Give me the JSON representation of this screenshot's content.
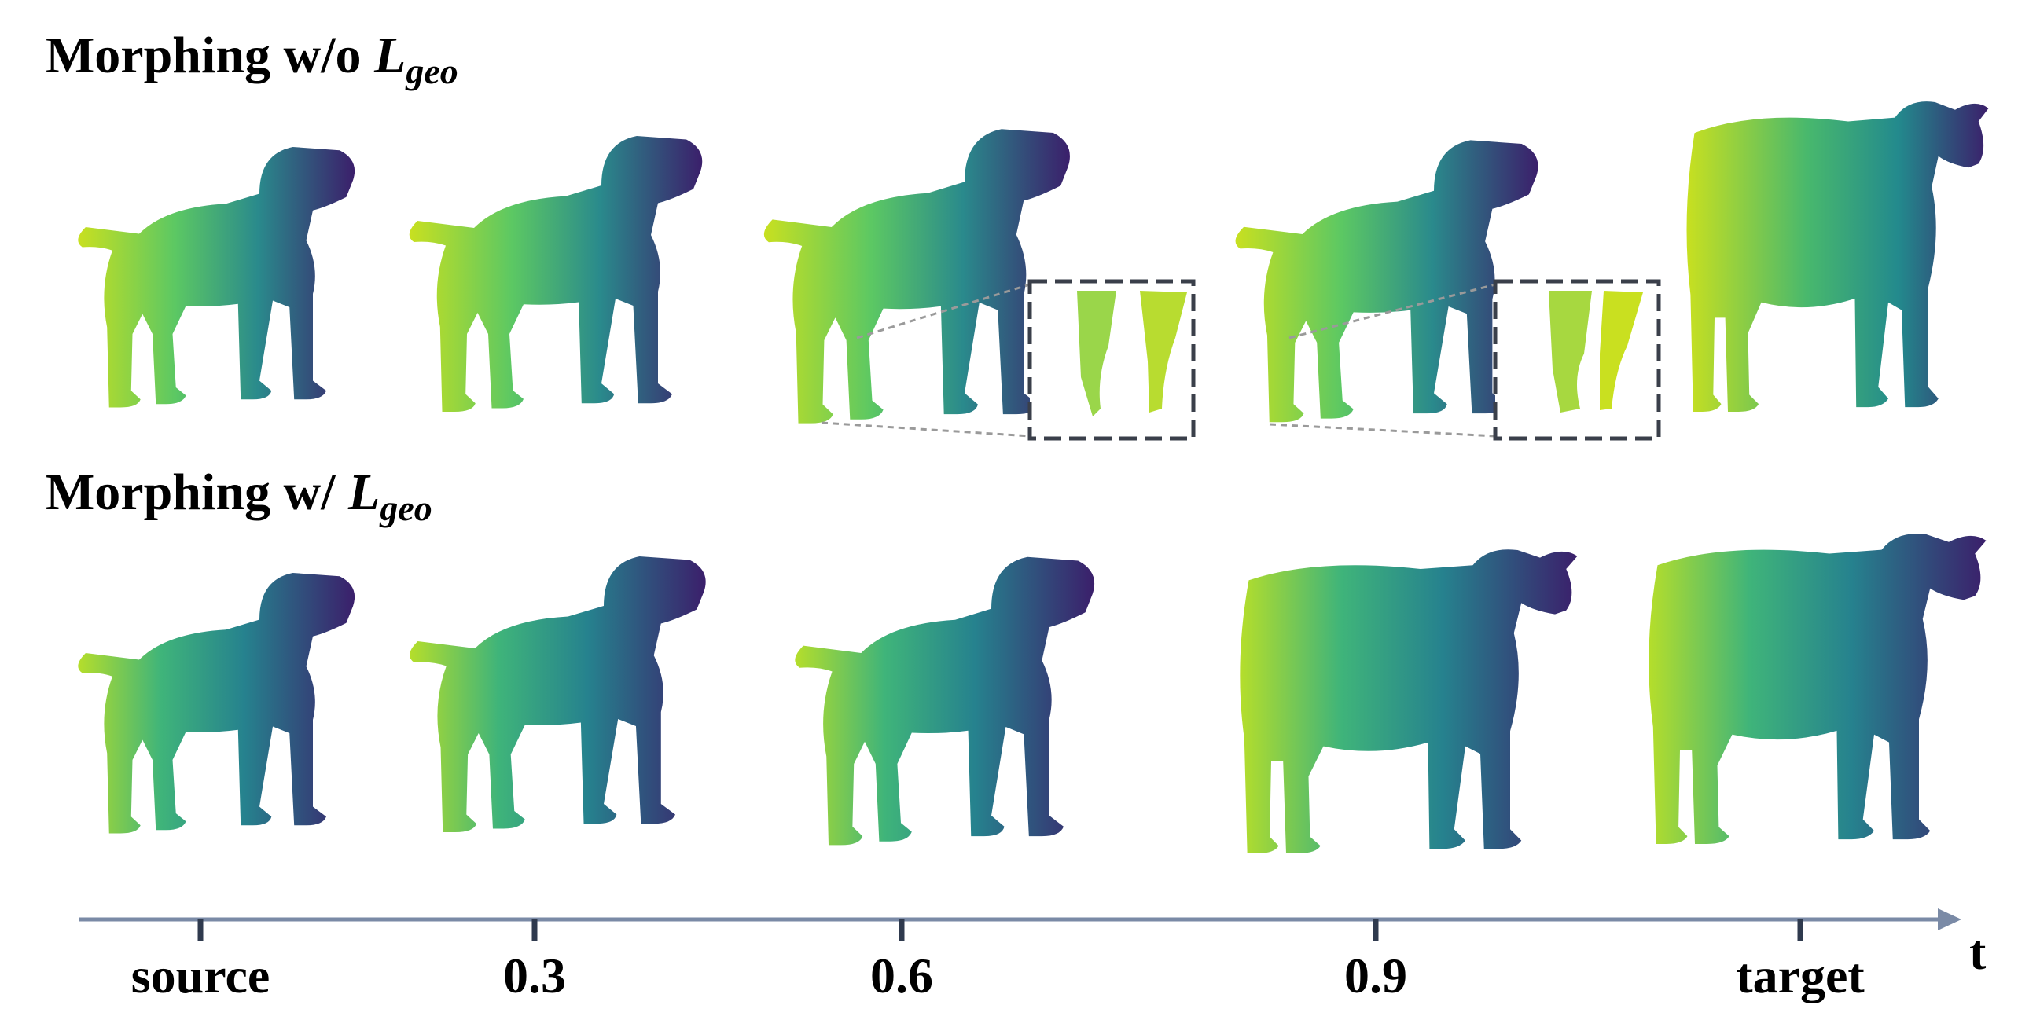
{
  "rows": [
    {
      "title_prefix": "Morphing w/o ",
      "title_symbol": "L",
      "title_subscript": "geo"
    },
    {
      "title_prefix": "Morphing w/ ",
      "title_symbol": "L",
      "title_subscript": "geo"
    }
  ],
  "axis": {
    "name": "t",
    "ticks": [
      "source",
      "0.3",
      "0.6",
      "0.9",
      "target"
    ]
  },
  "colors": {
    "axis": "#7a8aa6",
    "inset_border": "#3a3f4a",
    "viridis_dark": "#3b1f6b",
    "viridis_mid": "#21918c",
    "viridis_light": "#d8e219"
  }
}
